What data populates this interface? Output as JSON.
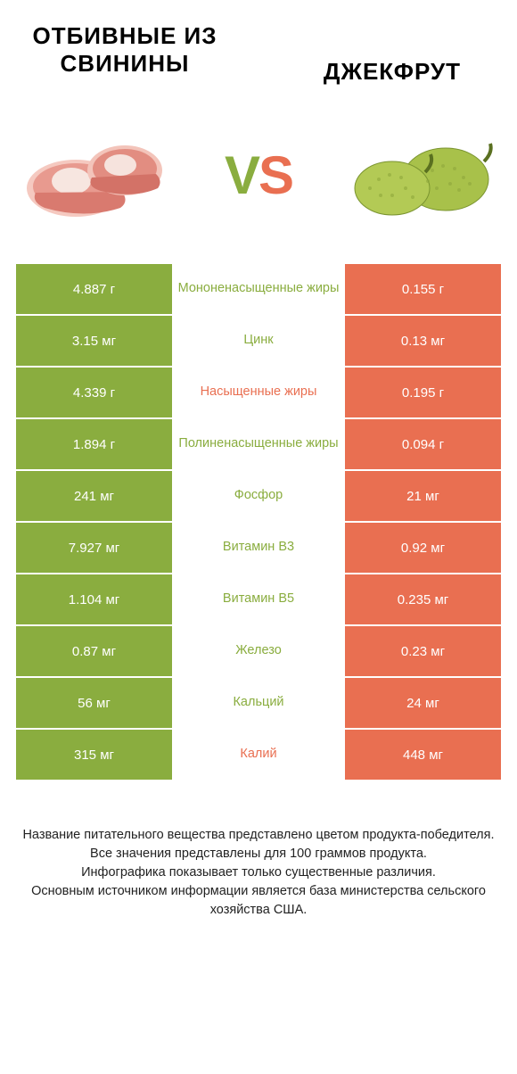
{
  "colors": {
    "green": "#8aad3f",
    "orange": "#e96f51",
    "text": "#333333"
  },
  "header": {
    "left": "ОТБИВНЫЕ ИЗ СВИНИНЫ",
    "right": "ДЖЕКФРУТ"
  },
  "vs": {
    "v": "V",
    "s": "S"
  },
  "rows": [
    {
      "left": "4.887 г",
      "mid": "Мононенасыщенные жиры",
      "right": "0.155 г",
      "winner": "left"
    },
    {
      "left": "3.15 мг",
      "mid": "Цинк",
      "right": "0.13 мг",
      "winner": "left"
    },
    {
      "left": "4.339 г",
      "mid": "Насыщенные жиры",
      "right": "0.195 г",
      "winner": "right"
    },
    {
      "left": "1.894 г",
      "mid": "Полиненасыщенные жиры",
      "right": "0.094 г",
      "winner": "left"
    },
    {
      "left": "241 мг",
      "mid": "Фосфор",
      "right": "21 мг",
      "winner": "left"
    },
    {
      "left": "7.927 мг",
      "mid": "Витамин B3",
      "right": "0.92 мг",
      "winner": "left"
    },
    {
      "left": "1.104 мг",
      "mid": "Витамин B5",
      "right": "0.235 мг",
      "winner": "left"
    },
    {
      "left": "0.87 мг",
      "mid": "Железо",
      "right": "0.23 мг",
      "winner": "left"
    },
    {
      "left": "56 мг",
      "mid": "Кальций",
      "right": "24 мг",
      "winner": "left"
    },
    {
      "left": "315 мг",
      "mid": "Калий",
      "right": "448 мг",
      "winner": "right"
    }
  ],
  "footer": {
    "l1": "Название питательного вещества представлено цветом продукта-победителя.",
    "l2": "Все значения представлены для 100 граммов продукта.",
    "l3": "Инфографика показывает только существенные различия.",
    "l4": "Основным источником информации является база министерства сельского хозяйства США."
  }
}
